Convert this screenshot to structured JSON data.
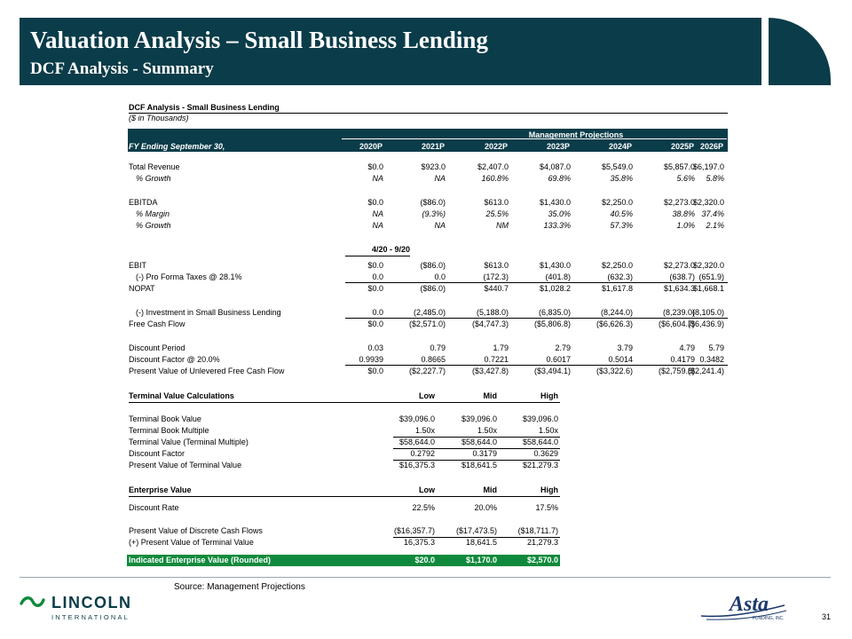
{
  "header": {
    "title": "Valuation Analysis – Small Business Lending",
    "subtitle": "DCF Analysis - Summary"
  },
  "table": {
    "title": "DCF Analysis - Small Business Lending",
    "units": "($ in Thousands)",
    "group_header": "Management Projections",
    "fy_label": "FY Ending September 30,",
    "years": [
      "2020P",
      "2021P",
      "2022P",
      "2023P",
      "2024P",
      "2025P",
      "2026P"
    ],
    "stub_label": "4/20 - 9/20",
    "rows": [
      {
        "label": "Total Revenue",
        "values": [
          "$0.0",
          "$923.0",
          "$2,407.0",
          "$4,087.0",
          "$5,549.0",
          "$5,857.0",
          "$6,197.0"
        ]
      },
      {
        "label": "% Growth",
        "values": [
          "NA",
          "NA",
          "160.8%",
          "69.8%",
          "35.8%",
          "5.6%",
          "5.8%"
        ]
      },
      {
        "label": "EBITDA",
        "values": [
          "$0.0",
          "($86.0)",
          "$613.0",
          "$1,430.0",
          "$2,250.0",
          "$2,273.0",
          "$2,320.0"
        ]
      },
      {
        "label": "% Margin",
        "values": [
          "NA",
          "(9.3%)",
          "25.5%",
          "35.0%",
          "40.5%",
          "38.8%",
          "37.4%"
        ]
      },
      {
        "label": "% Growth",
        "values": [
          "NA",
          "NA",
          "NM",
          "133.3%",
          "57.3%",
          "1.0%",
          "2.1%"
        ]
      },
      {
        "label": "EBIT",
        "values": [
          "$0.0",
          "($86.0)",
          "$613.0",
          "$1,430.0",
          "$2,250.0",
          "$2,273.0",
          "$2,320.0"
        ]
      },
      {
        "label": "(-) Pro Forma Taxes @ 28.1%",
        "values": [
          "0.0",
          "0.0",
          "(172.3)",
          "(401.8)",
          "(632.3)",
          "(638.7)",
          "(651.9)"
        ]
      },
      {
        "label": "NOPAT",
        "values": [
          "$0.0",
          "($86.0)",
          "$440.7",
          "$1,028.2",
          "$1,617.8",
          "$1,634.3",
          "$1,668.1"
        ]
      },
      {
        "label": "(-) Investment in Small Business Lending",
        "values": [
          "0.0",
          "(2,485.0)",
          "(5,188.0)",
          "(6,835.0)",
          "(8,244.0)",
          "(8,239.0)",
          "(8,105.0)"
        ]
      },
      {
        "label": "Free Cash Flow",
        "values": [
          "$0.0",
          "($2,571.0)",
          "($4,747.3)",
          "($5,806.8)",
          "($6,626.3)",
          "($6,604.7)",
          "($6,436.9)"
        ]
      },
      {
        "label": "Discount Period",
        "values": [
          "0.03",
          "0.79",
          "1.79",
          "2.79",
          "3.79",
          "4.79",
          "5.79"
        ]
      },
      {
        "label": "Discount Factor @ 20.0%",
        "values": [
          "0.9939",
          "0.8665",
          "0.7221",
          "0.6017",
          "0.5014",
          "0.4179",
          "0.3482"
        ]
      },
      {
        "label": "Present Value of Unlevered Free Cash Flow",
        "values": [
          "$0.0",
          "($2,227.7)",
          "($3,427.8)",
          "($3,494.1)",
          "($3,322.6)",
          "($2,759.8)",
          "($2,241.4)"
        ]
      }
    ]
  },
  "terminal": {
    "title": "Terminal Value Calculations",
    "cols": [
      "Low",
      "Mid",
      "High"
    ],
    "rows": [
      {
        "label": "Terminal Book Value",
        "values": [
          "$39,096.0",
          "$39,096.0",
          "$39,096.0"
        ]
      },
      {
        "label": "Terminal Book Multiple",
        "values": [
          "1.50x",
          "1.50x",
          "1.50x"
        ]
      },
      {
        "label": "Terminal Value (Terminal Multiple)",
        "values": [
          "$58,644.0",
          "$58,644.0",
          "$58,644.0"
        ]
      },
      {
        "label": "Discount Factor",
        "values": [
          "0.2792",
          "0.3179",
          "0.3629"
        ]
      },
      {
        "label": "Present Value of Terminal Value",
        "values": [
          "$16,375.3",
          "$18,641.5",
          "$21,279.3"
        ]
      }
    ]
  },
  "ev": {
    "title": "Enterprise Value",
    "cols": [
      "Low",
      "Mid",
      "High"
    ],
    "rows": [
      {
        "label": "Discount Rate",
        "values": [
          "22.5%",
          "20.0%",
          "17.5%"
        ]
      },
      {
        "label": "Present Value of Discrete Cash Flows",
        "values": [
          "($16,357.7)",
          "($17,473.5)",
          "($18,711.7)"
        ]
      },
      {
        "label": "(+) Present Value of Terminal Value",
        "values": [
          "16,375.3",
          "18,641.5",
          "21,279.3"
        ]
      }
    ],
    "indicated": {
      "label": "Indicated Enterprise Value (Rounded)",
      "values": [
        "$20.0",
        "$1,170.0",
        "$2,570.0"
      ]
    }
  },
  "footer": {
    "source": "Source: Management Projections",
    "logo_left_name": "LINCOLN",
    "logo_left_sub": "INTERNATIONAL",
    "logo_right_name": "Asta",
    "logo_right_sub": "FUNDING, INC.",
    "page_number": "31"
  },
  "colors": {
    "brand": "#0b3c49",
    "accent_green": "#0f8a3c"
  }
}
